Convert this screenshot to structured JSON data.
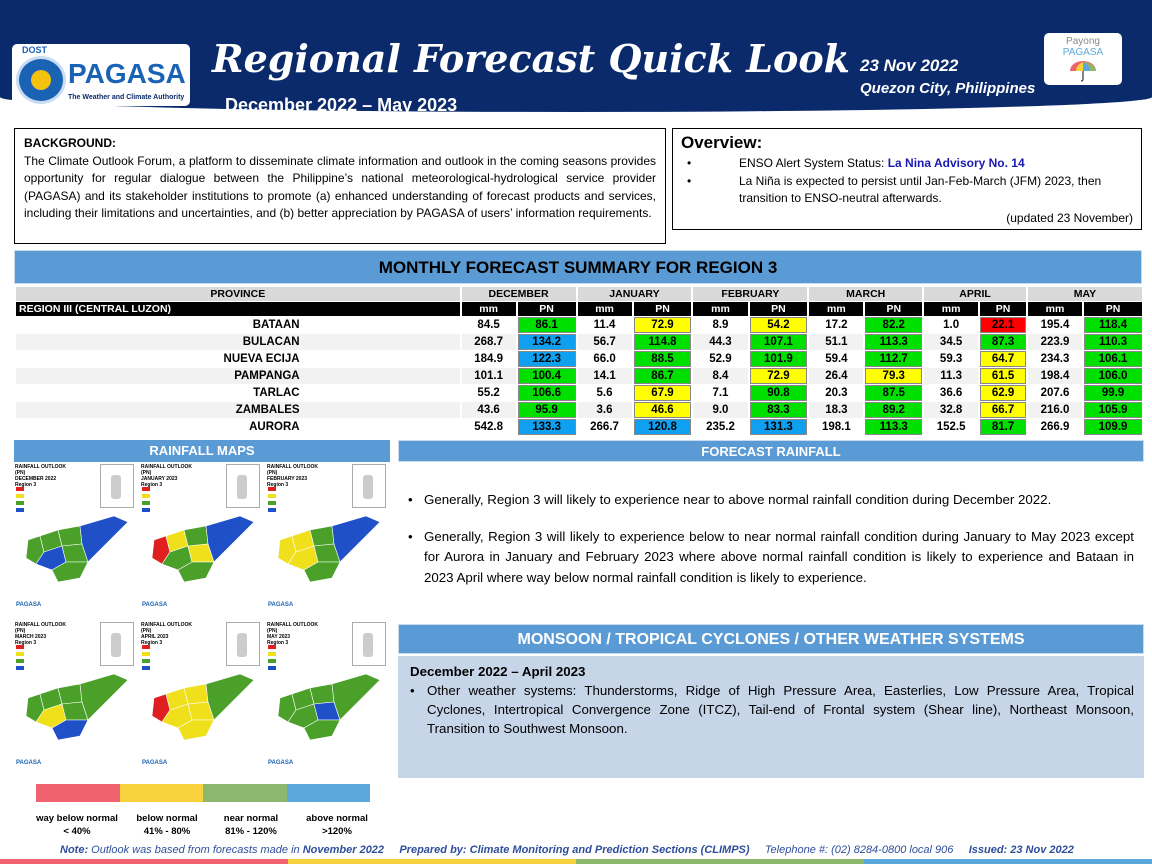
{
  "header": {
    "logo_dost": "DOST",
    "logo_name": "PAGASA",
    "logo_tagline": "The Weather and Climate Authority",
    "title": "Regional Forecast Quick Look",
    "period": "December 2022 – May 2023",
    "date": "23 Nov 2022",
    "location": "Quezon City, Philippines",
    "payong_label_1": "Payong",
    "payong_label_2": "PAGASA",
    "band_color": "#0b2a6b"
  },
  "background": {
    "heading": "BACKGROUND:",
    "body": "The Climate Outlook Forum, a platform to disseminate climate information and outlook in the coming seasons provides opportunity for regular dialogue between the Philippine’s national meteorological-hydrological service provider (PAGASA) and its stakeholder institutions to promote (a) enhanced understanding of forecast products and services, including their limitations and uncertainties, and (b) better appreciation by PAGASA of users’ information requirements."
  },
  "overview": {
    "heading": "Overview:",
    "enso_prefix": "ENSO Alert System Status: ",
    "enso_link": "La Nina Advisory No. 14",
    "lanina_text": "La Niña is expected to persist until Jan-Feb-March (JFM) 2023, then transition to ENSO-neutral afterwards.",
    "updated": "(updated 23 November)"
  },
  "summary": {
    "title": "MONTHLY FORECAST SUMMARY FOR REGION 3",
    "province_header": "PROVINCE",
    "region_label": "REGION III (CENTRAL LUZON)",
    "months": [
      "DECEMBER",
      "JANUARY",
      "FEBRUARY",
      "MARCH",
      "APRIL",
      "MAY"
    ],
    "sub_mm": "mm",
    "sub_pn": "PN",
    "rows": [
      {
        "province": "BATAAN",
        "cells": [
          [
            "84.5",
            "86.1",
            "green"
          ],
          [
            "11.4",
            "72.9",
            "yellow"
          ],
          [
            "8.9",
            "54.2",
            "yellow"
          ],
          [
            "17.2",
            "82.2",
            "green"
          ],
          [
            "1.0",
            "22.1",
            "red"
          ],
          [
            "195.4",
            "118.4",
            "green"
          ]
        ]
      },
      {
        "province": "BULACAN",
        "cells": [
          [
            "268.7",
            "134.2",
            "blue"
          ],
          [
            "56.7",
            "114.8",
            "green"
          ],
          [
            "44.3",
            "107.1",
            "green"
          ],
          [
            "51.1",
            "113.3",
            "green"
          ],
          [
            "34.5",
            "87.3",
            "green"
          ],
          [
            "223.9",
            "110.3",
            "green"
          ]
        ]
      },
      {
        "province": "NUEVA ECIJA",
        "cells": [
          [
            "184.9",
            "122.3",
            "blue"
          ],
          [
            "66.0",
            "88.5",
            "green"
          ],
          [
            "52.9",
            "101.9",
            "green"
          ],
          [
            "59.4",
            "112.7",
            "green"
          ],
          [
            "59.3",
            "64.7",
            "yellow"
          ],
          [
            "234.3",
            "106.1",
            "green"
          ]
        ]
      },
      {
        "province": "PAMPANGA",
        "cells": [
          [
            "101.1",
            "100.4",
            "green"
          ],
          [
            "14.1",
            "86.7",
            "green"
          ],
          [
            "8.4",
            "72.9",
            "yellow"
          ],
          [
            "26.4",
            "79.3",
            "yellow"
          ],
          [
            "11.3",
            "61.5",
            "yellow"
          ],
          [
            "198.4",
            "106.0",
            "green"
          ]
        ]
      },
      {
        "province": "TARLAC",
        "cells": [
          [
            "55.2",
            "106.6",
            "green"
          ],
          [
            "5.6",
            "67.9",
            "yellow"
          ],
          [
            "7.1",
            "90.8",
            "green"
          ],
          [
            "20.3",
            "87.5",
            "green"
          ],
          [
            "36.6",
            "62.9",
            "yellow"
          ],
          [
            "207.6",
            "99.9",
            "green"
          ]
        ]
      },
      {
        "province": "ZAMBALES",
        "cells": [
          [
            "43.6",
            "95.9",
            "green"
          ],
          [
            "3.6",
            "46.6",
            "yellow"
          ],
          [
            "9.0",
            "83.3",
            "green"
          ],
          [
            "18.3",
            "89.2",
            "green"
          ],
          [
            "32.8",
            "66.7",
            "yellow"
          ],
          [
            "216.0",
            "105.9",
            "green"
          ]
        ]
      },
      {
        "province": "AURORA",
        "cells": [
          [
            "542.8",
            "133.3",
            "blue"
          ],
          [
            "266.7",
            "120.8",
            "blue"
          ],
          [
            "235.2",
            "131.3",
            "blue"
          ],
          [
            "198.1",
            "113.3",
            "green"
          ],
          [
            "152.5",
            "81.7",
            "green"
          ],
          [
            "266.9",
            "109.9",
            "green"
          ]
        ]
      }
    ],
    "colors": {
      "red": "#ff0000",
      "yellow": "#ffff00",
      "green": "#00e000",
      "blue": "#0fa0f0"
    }
  },
  "maps": {
    "title": "RAINFALL MAPS",
    "panels": [
      {
        "line1": "RAINFALL OUTLOOK (PN)",
        "line2": "DECEMBER 2022",
        "line3": "Region 3"
      },
      {
        "line1": "RAINFALL OUTLOOK (PN)",
        "line2": "JANUARY 2023",
        "line3": "Region 3"
      },
      {
        "line1": "RAINFALL OUTLOOK (PN)",
        "line2": "FEBRUARY 2023",
        "line3": "Region 3"
      },
      {
        "line1": "RAINFALL OUTLOOK (PN)",
        "line2": "MARCH 2023",
        "line3": "Region 3"
      },
      {
        "line1": "RAINFALL OUTLOOK (PN)",
        "line2": "APRIL 2023",
        "line3": "Region 3"
      },
      {
        "line1": "RAINFALL OUTLOOK (PN)",
        "line2": "MAY 2023",
        "line3": "Region 3"
      }
    ],
    "legend": [
      {
        "label": "way below normal",
        "range": "< 40%",
        "color": "#f0626e"
      },
      {
        "label": "below normal",
        "range": "41% - 80%",
        "color": "#f8d23c"
      },
      {
        "label": "near normal",
        "range": "81% - 120%",
        "color": "#8cb86e"
      },
      {
        "label": "above normal",
        "range": ">120%",
        "color": "#5aa8dc"
      }
    ]
  },
  "forecast_rainfall": {
    "title": "FORECAST RAINFALL",
    "item1": "Generally, Region 3 will likely to experience near to above normal rainfall condition during December 2022.",
    "item2": "Generally, Region 3 will likely to experience below to near normal rainfall condition during January to May 2023 except for Aurora in January and February 2023 where above normal rainfall condition is likely to experience and Bataan in 2023 April where way below normal rainfall condition is likely to experience."
  },
  "monsoon": {
    "title": "MONSOON / TROPICAL CYCLONES / OTHER WEATHER SYSTEMS",
    "period": "December 2022 – April 2023",
    "item": "Other weather systems: Thunderstorms,  Ridge of High Pressure Area,  Easterlies, Low Pressure Area, Tropical Cyclones, Intertropical Convergence Zone (ITCZ), Tail-end of Frontal system (Shear line), Northeast Monsoon, Transition to Southwest Monsoon."
  },
  "footer": {
    "note_label": "Note:",
    "note_text": "Outlook was based from forecasts made in",
    "note_month": "November 2022",
    "prepared": "Prepared by: Climate Monitoring and Prediction Sections (CLIMPS)",
    "telephone": "Telephone #: (02) 8284-0800 local 906",
    "issued": "Issued: 23 Nov 2022"
  }
}
